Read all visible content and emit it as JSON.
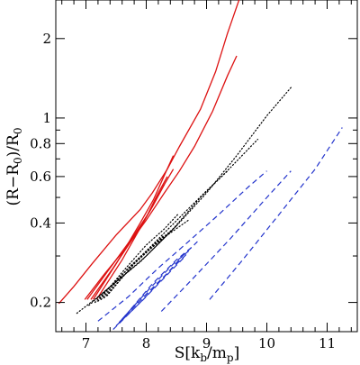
{
  "chart_data": {
    "type": "line",
    "title": "",
    "xlabel": {
      "base": "S[k",
      "sub1": "b",
      "mid": "/m",
      "sub2": "p",
      "end": "]"
    },
    "ylabel": {
      "open": "(R−R",
      "sub1": "0",
      "mid": ")/R",
      "sub2": "0"
    },
    "xlim": [
      6.5,
      11.5
    ],
    "ylim": [
      0.155,
      2.8
    ],
    "yscale": "log",
    "grid": false,
    "xticks": [
      7,
      8,
      9,
      10,
      11
    ],
    "xtick_labels": [
      "7",
      "8",
      "9",
      "10",
      "11"
    ],
    "yticks": [
      0.2,
      0.4,
      0.6,
      0.8,
      1,
      2
    ],
    "ytick_labels": [
      "0.2",
      "0.4",
      "0.6",
      "0.8",
      "1",
      "2"
    ],
    "series": [
      {
        "style": "solid",
        "color": "#dd1111",
        "points": [
          [
            6.55,
            0.198
          ],
          [
            6.8,
            0.23
          ],
          [
            7.1,
            0.28
          ],
          [
            7.5,
            0.36
          ],
          [
            7.9,
            0.45
          ],
          [
            8.1,
            0.52
          ],
          [
            8.35,
            0.64
          ],
          [
            8.55,
            0.78
          ],
          [
            8.9,
            1.08
          ],
          [
            9.15,
            1.5
          ],
          [
            9.35,
            2.1
          ],
          [
            9.55,
            2.85
          ]
        ]
      },
      {
        "style": "solid",
        "color": "#dd1111",
        "points": [
          [
            6.98,
            0.205
          ],
          [
            7.3,
            0.255
          ],
          [
            7.7,
            0.33
          ],
          [
            8.0,
            0.41
          ],
          [
            8.3,
            0.52
          ],
          [
            8.55,
            0.63
          ],
          [
            8.8,
            0.78
          ],
          [
            9.1,
            1.06
          ],
          [
            9.35,
            1.45
          ],
          [
            9.5,
            1.72
          ]
        ]
      },
      {
        "style": "solid",
        "color": "#dd1111",
        "points": [
          [
            7.02,
            0.205
          ],
          [
            7.4,
            0.27
          ],
          [
            7.8,
            0.36
          ],
          [
            8.05,
            0.44
          ],
          [
            8.3,
            0.56
          ],
          [
            8.45,
            0.64
          ]
        ]
      },
      {
        "style": "solid",
        "color": "#dd1111",
        "points": [
          [
            7.08,
            0.205
          ],
          [
            7.45,
            0.27
          ],
          [
            7.85,
            0.37
          ],
          [
            8.1,
            0.46
          ],
          [
            8.3,
            0.56
          ]
        ]
      },
      {
        "style": "solid",
        "color": "#dd1111",
        "points": [
          [
            7.12,
            0.205
          ],
          [
            7.5,
            0.28
          ],
          [
            7.9,
            0.4
          ],
          [
            8.12,
            0.49
          ],
          [
            8.32,
            0.62
          ],
          [
            8.45,
            0.72
          ]
        ]
      },
      {
        "style": "solid",
        "color": "#dd1111",
        "points": [
          [
            7.18,
            0.206
          ],
          [
            7.6,
            0.29
          ],
          [
            8.0,
            0.42
          ],
          [
            8.2,
            0.52
          ],
          [
            8.35,
            0.6
          ]
        ]
      },
      {
        "style": "dotted",
        "color": "#000000",
        "points": [
          [
            6.85,
            0.182
          ],
          [
            7.2,
            0.21
          ],
          [
            7.6,
            0.25
          ],
          [
            8.0,
            0.3
          ],
          [
            8.5,
            0.39
          ],
          [
            9.0,
            0.52
          ],
          [
            9.5,
            0.72
          ],
          [
            10.0,
            1.02
          ],
          [
            10.42,
            1.32
          ]
        ]
      },
      {
        "style": "dotted",
        "color": "#000000",
        "points": [
          [
            7.05,
            0.195
          ],
          [
            7.45,
            0.235
          ],
          [
            7.9,
            0.285
          ],
          [
            8.4,
            0.37
          ],
          [
            8.9,
            0.5
          ],
          [
            9.4,
            0.65
          ],
          [
            9.85,
            0.83
          ]
        ]
      },
      {
        "style": "dotted",
        "color": "#000000",
        "points": [
          [
            7.15,
            0.2
          ],
          [
            7.6,
            0.255
          ],
          [
            8.1,
            0.33
          ],
          [
            8.6,
            0.43
          ],
          [
            9.0,
            0.53
          ],
          [
            9.35,
            0.63
          ]
        ]
      },
      {
        "style": "dotted",
        "color": "#000000",
        "points": [
          [
            7.2,
            0.202
          ],
          [
            7.6,
            0.26
          ],
          [
            8.0,
            0.33
          ],
          [
            8.3,
            0.38
          ],
          [
            8.52,
            0.43
          ]
        ]
      },
      {
        "style": "dotted",
        "color": "#000000",
        "points": [
          [
            7.25,
            0.205
          ],
          [
            7.7,
            0.27
          ],
          [
            8.05,
            0.32
          ],
          [
            8.3,
            0.36
          ]
        ]
      },
      {
        "style": "dotted",
        "color": "#000000",
        "points": [
          [
            7.3,
            0.208
          ],
          [
            7.8,
            0.28
          ],
          [
            8.2,
            0.34
          ],
          [
            8.5,
            0.39
          ]
        ]
      },
      {
        "style": "dotted",
        "color": "#000000",
        "points": [
          [
            7.35,
            0.212
          ],
          [
            7.85,
            0.29
          ],
          [
            8.35,
            0.36
          ],
          [
            8.7,
            0.41
          ]
        ]
      },
      {
        "style": "dashed",
        "color": "#2233cc",
        "points": [
          [
            9.05,
            0.205
          ],
          [
            9.6,
            0.29
          ],
          [
            10.2,
            0.43
          ],
          [
            10.8,
            0.64
          ],
          [
            11.25,
            0.92
          ]
        ]
      },
      {
        "style": "dashed",
        "color": "#2233cc",
        "points": [
          [
            8.25,
            0.185
          ],
          [
            8.8,
            0.25
          ],
          [
            9.4,
            0.35
          ],
          [
            10.0,
            0.5
          ],
          [
            10.4,
            0.63
          ]
        ]
      },
      {
        "style": "dashed",
        "color": "#2233cc",
        "points": [
          [
            7.2,
            0.17
          ],
          [
            7.7,
            0.21
          ],
          [
            8.2,
            0.27
          ],
          [
            8.7,
            0.34
          ],
          [
            9.2,
            0.43
          ],
          [
            9.7,
            0.55
          ],
          [
            10.0,
            0.63
          ]
        ]
      },
      {
        "style": "dashed",
        "color": "#2233cc",
        "points": [
          [
            7.45,
            0.158
          ],
          [
            7.9,
            0.2
          ],
          [
            8.3,
            0.25
          ],
          [
            8.6,
            0.3
          ],
          [
            8.85,
            0.34
          ]
        ]
      },
      {
        "style": "dashed",
        "color": "#2233cc",
        "points": [
          [
            7.5,
            0.163
          ],
          [
            7.95,
            0.205
          ],
          [
            8.35,
            0.255
          ],
          [
            8.65,
            0.3
          ]
        ]
      },
      {
        "style": "dashed",
        "color": "#2233cc",
        "points": [
          [
            7.55,
            0.168
          ],
          [
            8.0,
            0.215
          ],
          [
            8.4,
            0.265
          ],
          [
            8.7,
            0.31
          ]
        ]
      },
      {
        "style": "dashed",
        "color": "#2233cc",
        "points": [
          [
            7.6,
            0.173
          ],
          [
            8.05,
            0.225
          ],
          [
            8.45,
            0.28
          ],
          [
            8.75,
            0.32
          ]
        ]
      },
      {
        "style": "dashed",
        "color": "#2233cc",
        "points": [
          [
            7.65,
            0.178
          ],
          [
            8.1,
            0.235
          ],
          [
            8.5,
            0.29
          ],
          [
            8.8,
            0.33
          ]
        ]
      }
    ]
  }
}
